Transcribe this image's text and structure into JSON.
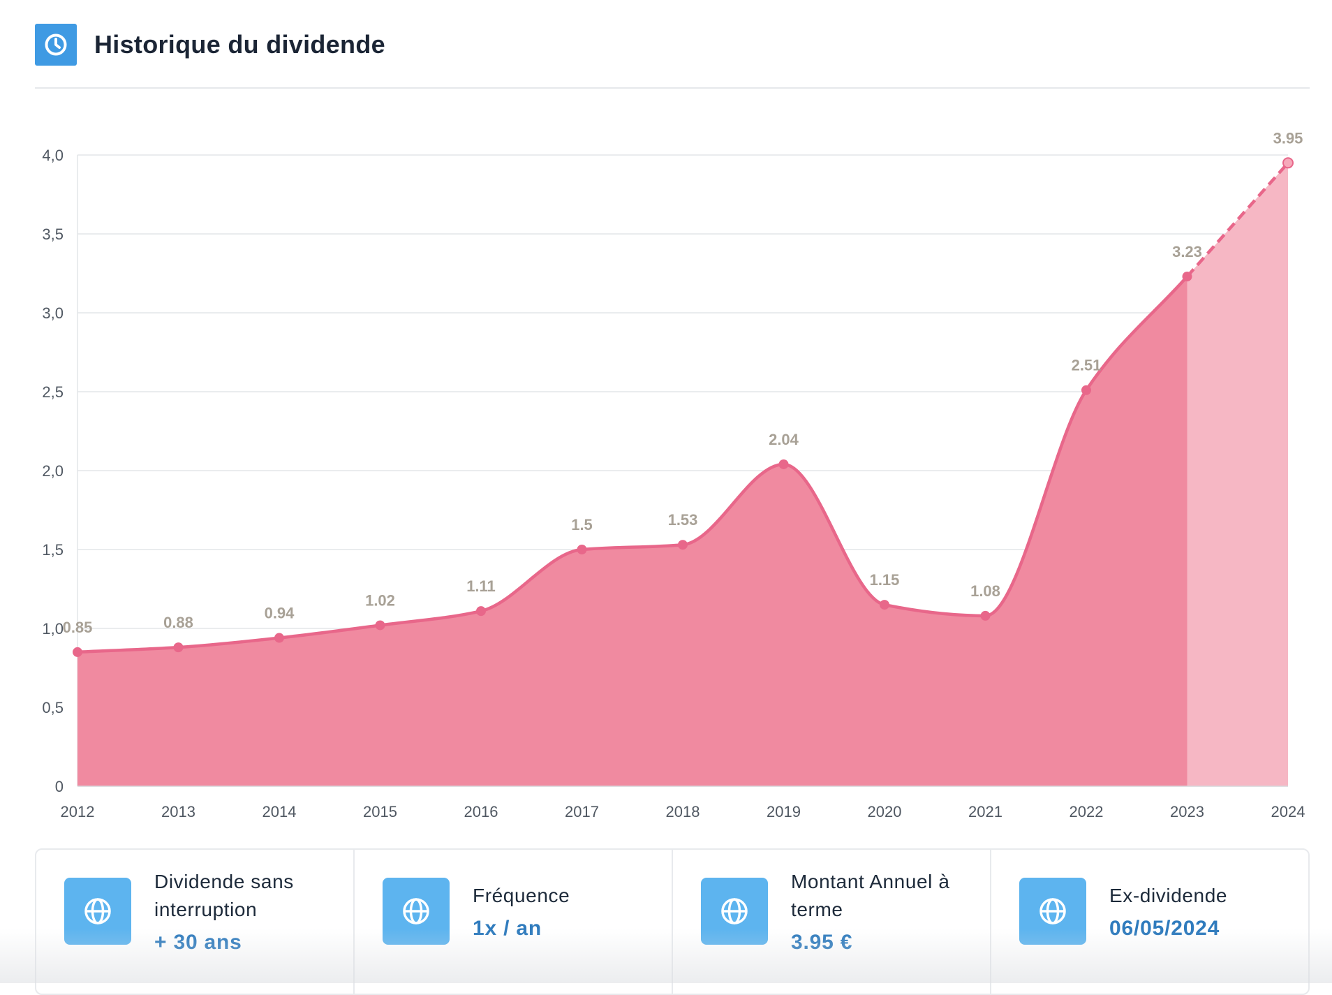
{
  "header": {
    "title": "Historique du dividende",
    "icon": "clock-icon"
  },
  "chart_data": {
    "type": "area",
    "title": "",
    "xlabel": "",
    "ylabel": "",
    "categories": [
      "2012",
      "2013",
      "2014",
      "2015",
      "2016",
      "2017",
      "2018",
      "2019",
      "2020",
      "2021",
      "2022",
      "2023",
      "2024"
    ],
    "values": [
      0.85,
      0.88,
      0.94,
      1.02,
      1.11,
      1.5,
      1.53,
      2.04,
      1.15,
      1.08,
      2.51,
      3.23,
      3.95
    ],
    "data_labels": [
      "0.85",
      "0.88",
      "0.94",
      "1.02",
      "1.11",
      "1.5",
      "1.53",
      "2.04",
      "1.15",
      "1.08",
      "2.51",
      "3.23",
      "3.95"
    ],
    "projected_from_index": 11,
    "ylim": [
      0,
      4.0
    ],
    "yticks": [
      0,
      0.5,
      1.0,
      1.5,
      2.0,
      2.5,
      3.0,
      3.5,
      4.0
    ],
    "ytick_labels": [
      "0",
      "0,5",
      "1,0",
      "1,5",
      "2,0",
      "2,5",
      "3,0",
      "3,5",
      "4,0"
    ],
    "grid": true,
    "colors": {
      "line": "#e8678a",
      "fill": "#f08aa0",
      "projected_fill": "#f6b7c4",
      "data_label": "#a8a196"
    }
  },
  "stats": [
    {
      "label": "Dividende sans interruption",
      "value": "+ 30 ans",
      "icon": "globe-icon"
    },
    {
      "label": "Fréquence",
      "value": "1x / an",
      "icon": "globe-icon"
    },
    {
      "label": "Montant Annuel à terme",
      "value": "3.95 €",
      "icon": "globe-icon"
    },
    {
      "label": "Ex-dividende",
      "value": "06/05/2024",
      "icon": "globe-icon"
    }
  ]
}
